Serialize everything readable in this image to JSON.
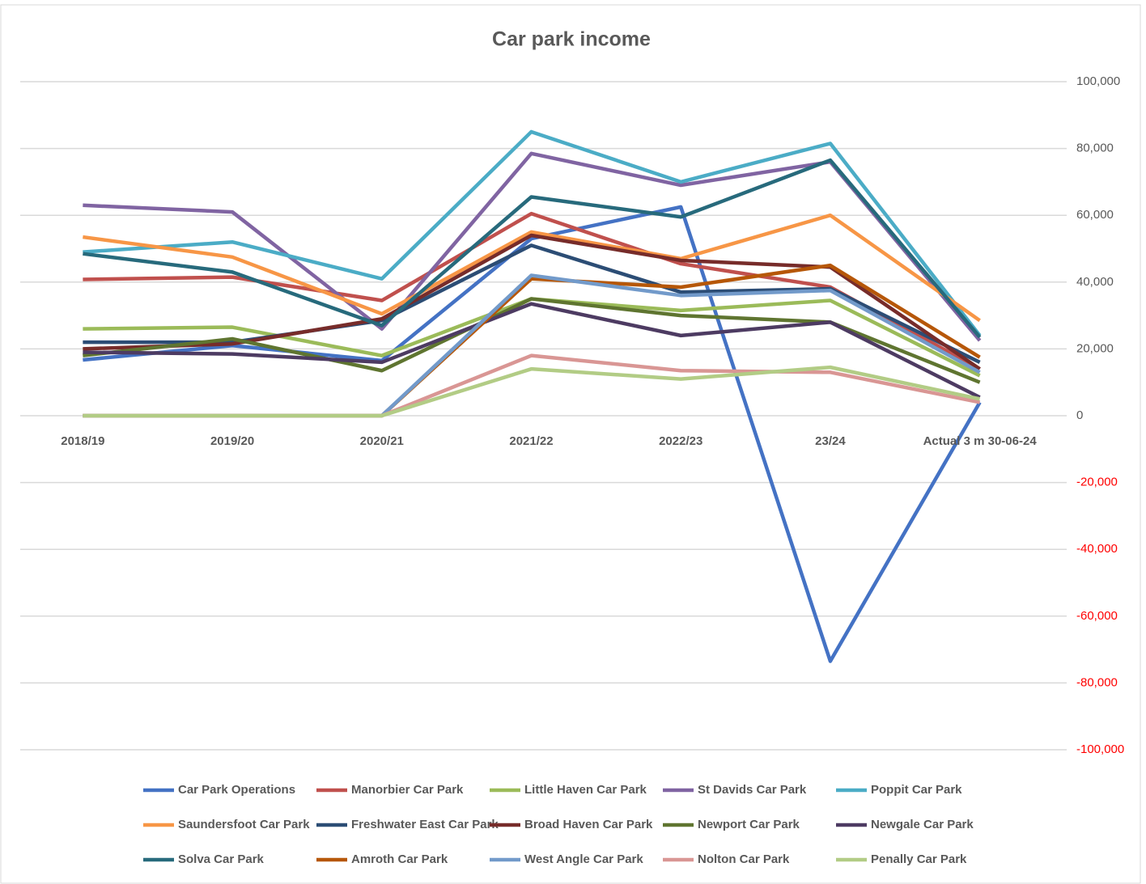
{
  "chart_data": {
    "type": "line",
    "title": "Car park income",
    "categories": [
      "2018/19",
      "2019/20",
      "2020/21",
      "2021/22",
      "2022/23",
      "23/24",
      "Actual 3 m 30-06-24"
    ],
    "ylim": [
      -100000,
      100000
    ],
    "yticks": [
      {
        "value": -100000,
        "label": "-100,000"
      },
      {
        "value": -80000,
        "label": "-80,000"
      },
      {
        "value": -60000,
        "label": "-60,000"
      },
      {
        "value": -40000,
        "label": "-40,000"
      },
      {
        "value": -20000,
        "label": "-20,000"
      },
      0,
      {
        "value": 20000,
        "label": "20,000"
      },
      {
        "value": 40000,
        "label": "40,000"
      },
      {
        "value": 60000,
        "label": "60,000"
      },
      {
        "value": 80000,
        "label": "80,000"
      },
      {
        "value": 100000,
        "label": "100,000"
      }
    ],
    "y_axis_side": "right",
    "negative_tick_color": "#ff0000",
    "grid": true,
    "legend": "bottom",
    "series": [
      {
        "name": "Car Park Operations",
        "color": "#4472c4",
        "values": [
          16700,
          21000,
          16500,
          53000,
          62500,
          -73500,
          4000
        ]
      },
      {
        "name": "Manorbier Car Park",
        "color": "#c0504d",
        "values": [
          40800,
          41500,
          34500,
          60500,
          45500,
          38500,
          14000
        ]
      },
      {
        "name": "Little Haven Car Park",
        "color": "#9bbb59",
        "values": [
          26000,
          26500,
          18000,
          35000,
          31500,
          34500,
          12000
        ]
      },
      {
        "name": "St Davids Car Park",
        "color": "#8064a2",
        "values": [
          63000,
          61000,
          26000,
          78500,
          69000,
          76000,
          22500
        ]
      },
      {
        "name": "Poppit Car Park",
        "color": "#4bacc6",
        "values": [
          49000,
          52000,
          41000,
          85000,
          70000,
          81500,
          24000
        ]
      },
      {
        "name": "Saundersfoot Car Park",
        "color": "#f79646",
        "values": [
          53500,
          47500,
          30500,
          55000,
          47000,
          60000,
          28500
        ]
      },
      {
        "name": "Freshwater East Car Park",
        "color": "#2c4d75",
        "values": [
          22000,
          22000,
          28500,
          51000,
          37000,
          38000,
          16000
        ]
      },
      {
        "name": "Broad Haven Car Park",
        "color": "#772c2a",
        "values": [
          20000,
          21500,
          29000,
          54000,
          46500,
          44500,
          14000
        ]
      },
      {
        "name": "Newport Car Park",
        "color": "#5f7530",
        "values": [
          18000,
          23000,
          13500,
          35000,
          30000,
          28000,
          10000
        ]
      },
      {
        "name": "Newgale Car Park",
        "color": "#4d3b62",
        "values": [
          19000,
          18500,
          16000,
          33500,
          24000,
          28000,
          5500
        ]
      },
      {
        "name": "Solva Car Park",
        "color": "#276a7c",
        "values": [
          48500,
          43000,
          27000,
          65500,
          59500,
          76500,
          23500
        ]
      },
      {
        "name": "Amroth Car Park",
        "color": "#b65708",
        "values": [
          0,
          0,
          0,
          41000,
          38500,
          45000,
          17500
        ]
      },
      {
        "name": "West Angle Car Park",
        "color": "#729aca",
        "values": [
          0,
          0,
          0,
          42000,
          36000,
          37500,
          13000
        ]
      },
      {
        "name": "Nolton Car Park",
        "color": "#d99694",
        "values": [
          0,
          0,
          0,
          18000,
          13500,
          13000,
          4000
        ]
      },
      {
        "name": "Penally Car Park",
        "color": "#b2cc85",
        "values": [
          0,
          0,
          0,
          14000,
          11000,
          14500,
          5000
        ]
      }
    ]
  }
}
